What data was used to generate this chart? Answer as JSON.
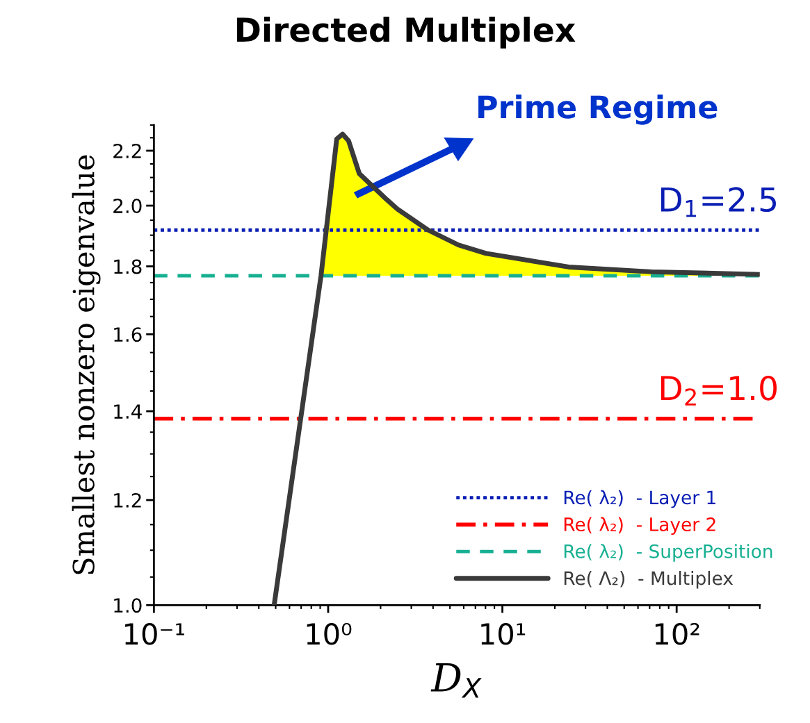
{
  "chart_data": {
    "type": "line",
    "title": "Directed Multiplex",
    "xlabel": "D$_{X}$",
    "ylabel": "Smallest nonzero eigenvalue",
    "log": "xy",
    "xlim": [
      0.1,
      300
    ],
    "ylim": [
      1.0,
      2.3
    ],
    "xticks": [
      {
        "value": 0.1,
        "label": "10⁻¹"
      },
      {
        "value": 1,
        "label": "10⁰"
      },
      {
        "value": 10,
        "label": "10¹"
      },
      {
        "value": 100,
        "label": "10²"
      }
    ],
    "yticks": [
      {
        "value": 1,
        "label": "1.0"
      },
      1.2,
      1.4,
      1.6,
      1.8,
      {
        "value": 2,
        "label": "2.0"
      },
      2.2
    ],
    "grid": false,
    "legend": "bottom right",
    "series": [
      {
        "name": "Re( λ₂)  - Layer 1",
        "color": "#0a1eb4",
        "line_style": "dotted",
        "x": [
          0.1,
          300
        ],
        "values": [
          1.917,
          1.917
        ]
      },
      {
        "name": "Re( λ₂)  - Layer 2",
        "color": "#ff0000",
        "line_style": "dashdot",
        "x": [
          0.1,
          300
        ],
        "values": [
          1.382,
          1.382
        ]
      },
      {
        "name": "Re( λ₂)  - SuperPosition",
        "color": "#17b092",
        "line_style": "dashed",
        "x": [
          0.1,
          300
        ],
        "values": [
          1.771,
          1.771
        ]
      },
      {
        "name": "Re( Λ₂)  - Multiplex",
        "color": "#3a3a3a",
        "line_style": "solid",
        "x": [
          0.49,
          0.91,
          1.12,
          1.21,
          1.31,
          1.51,
          2.17,
          2.51,
          3.75,
          5.6,
          8.06,
          24,
          71.7,
          300
        ],
        "values": [
          1.0,
          1.771,
          2.245,
          2.264,
          2.238,
          2.114,
          2.021,
          1.987,
          1.917,
          1.868,
          1.841,
          1.798,
          1.783,
          1.775
        ],
        "lower": [
          null,
          1.771,
          1.771,
          1.771,
          1.771,
          1.771,
          1.771,
          1.771,
          1.771,
          1.771,
          1.771,
          1.771,
          1.771,
          1.771
        ],
        "upper": [
          null,
          1.771,
          2.245,
          2.264,
          2.238,
          2.114,
          2.021,
          1.987,
          1.917,
          1.868,
          1.841,
          1.798,
          1.783,
          1.775
        ]
      }
    ],
    "annotations": [
      "Prime Regime",
      {
        "text": "D$_{1}$=2.5",
        "x": 300,
        "y": 1.917
      },
      {
        "text": "D$_{2}$=1.0",
        "x": 300,
        "y": 1.382
      }
    ]
  }
}
